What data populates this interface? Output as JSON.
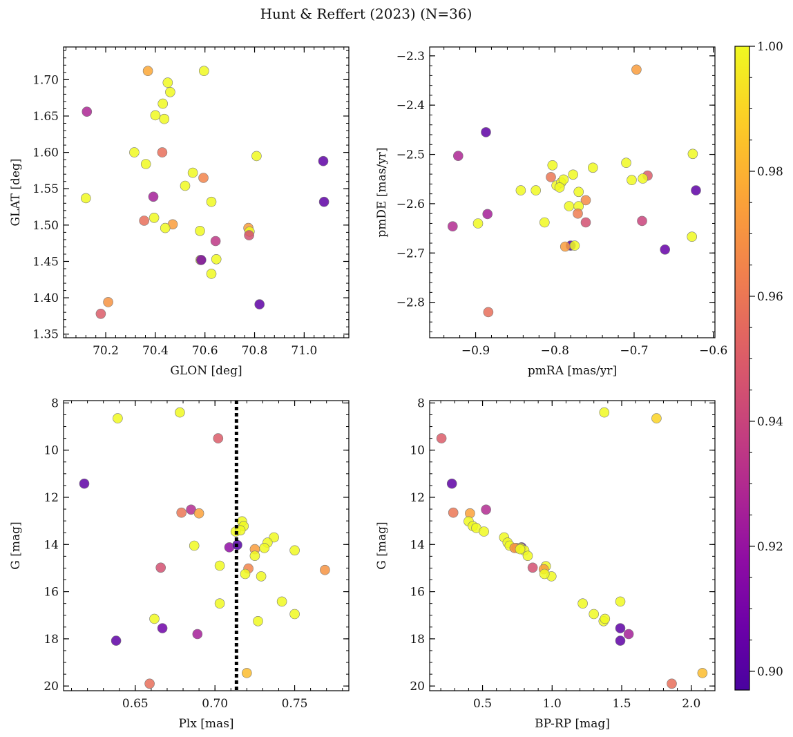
{
  "figure": {
    "title": "Hunt & Reffert (2023) (N=36)",
    "colormap": "plasma",
    "colorbar": {
      "min": 0.897,
      "max": 1.0,
      "ticks": [
        "0.90",
        "0.92",
        "0.94",
        "0.96",
        "0.98",
        "1.00"
      ],
      "tick_values": [
        0.9,
        0.92,
        0.94,
        0.96,
        0.98,
        1.0
      ]
    },
    "marker_edge_color": "#777777",
    "vline_color": "#000000"
  },
  "chart_data": [
    {
      "type": "scatter",
      "xlabel": "GLON [deg]",
      "ylabel": "GLAT [deg]",
      "xlim": [
        70.03,
        71.18
      ],
      "ylim": [
        1.345,
        1.745
      ],
      "y_inverted": false,
      "xticks": [
        70.2,
        70.4,
        70.6,
        70.8,
        71.0
      ],
      "xtick_labels": [
        "70.2",
        "70.4",
        "70.6",
        "70.8",
        "71.0"
      ],
      "yticks": [
        1.35,
        1.4,
        1.45,
        1.5,
        1.55,
        1.6,
        1.65,
        1.7
      ],
      "ytick_labels": [
        "1.35",
        "1.40",
        "1.45",
        "1.50",
        "1.55",
        "1.60",
        "1.65",
        "1.70"
      ],
      "x": [
        70.37,
        70.596,
        70.45,
        70.46,
        70.124,
        70.43,
        70.4,
        70.436,
        70.315,
        70.428,
        70.362,
        70.808,
        71.077,
        70.551,
        70.594,
        70.52,
        70.392,
        70.12,
        70.626,
        71.08,
        70.395,
        70.355,
        70.47,
        70.44,
        70.775,
        70.58,
        70.78,
        70.778,
        70.643,
        70.582,
        70.585,
        70.646,
        70.626,
        70.82,
        70.21,
        70.18
      ],
      "y": [
        1.712,
        1.712,
        1.696,
        1.683,
        1.656,
        1.667,
        1.651,
        1.646,
        1.6,
        1.6,
        1.584,
        1.595,
        1.588,
        1.572,
        1.565,
        1.554,
        1.539,
        1.537,
        1.532,
        1.532,
        1.51,
        1.506,
        1.501,
        1.496,
        1.496,
        1.492,
        1.491,
        1.486,
        1.478,
        1.452,
        1.452,
        1.453,
        1.433,
        1.391,
        1.394,
        1.378
      ],
      "c": [
        0.977,
        1.0,
        1.0,
        1.0,
        0.928,
        1.0,
        1.0,
        1.0,
        1.0,
        0.957,
        1.0,
        1.0,
        0.903,
        1.0,
        0.965,
        1.0,
        0.925,
        1.0,
        1.0,
        0.903,
        1.0,
        0.957,
        0.973,
        1.0,
        0.973,
        1.0,
        1.0,
        0.945,
        0.935,
        1.0,
        0.91,
        1.0,
        1.0,
        0.903,
        0.97,
        0.95
      ]
    },
    {
      "type": "scatter",
      "xlabel": "pmRA [mas/yr]",
      "ylabel": "pmDE [mas/yr]",
      "xlim": [
        -0.958,
        -0.598
      ],
      "ylim": [
        -2.872,
        -2.282
      ],
      "y_inverted": false,
      "xticks": [
        -0.9,
        -0.8,
        -0.7,
        -0.6
      ],
      "xtick_labels": [
        "−0.9",
        "−0.8",
        "−0.7",
        "−0.6"
      ],
      "yticks": [
        -2.8,
        -2.7,
        -2.6,
        -2.5,
        -2.4,
        -2.3
      ],
      "ytick_labels": [
        "−2.8",
        "−2.7",
        "−2.6",
        "−2.5",
        "−2.4",
        "−2.3"
      ],
      "x": [
        -0.697,
        -0.887,
        -0.922,
        -0.626,
        -0.71,
        -0.803,
        -0.752,
        -0.805,
        -0.777,
        -0.683,
        -0.703,
        -0.689,
        -0.798,
        -0.792,
        -0.789,
        -0.794,
        -0.843,
        -0.824,
        -0.77,
        -0.622,
        -0.761,
        -0.782,
        -0.77,
        -0.813,
        -0.929,
        -0.897,
        -0.885,
        -0.69,
        -0.761,
        -0.627,
        -0.771,
        -0.661,
        -0.78,
        -0.775,
        -0.787,
        -0.884
      ],
      "y": [
        -2.328,
        -2.455,
        -2.503,
        -2.499,
        -2.517,
        -2.522,
        -2.527,
        -2.546,
        -2.541,
        -2.543,
        -2.552,
        -2.549,
        -2.563,
        -2.557,
        -2.551,
        -2.567,
        -2.573,
        -2.573,
        -2.576,
        -2.573,
        -2.593,
        -2.605,
        -2.605,
        -2.638,
        -2.646,
        -2.64,
        -2.621,
        -2.635,
        -2.638,
        -2.667,
        -2.62,
        -2.693,
        -2.685,
        -2.685,
        -2.687,
        -2.82
      ],
      "c": [
        0.973,
        0.903,
        0.928,
        1.0,
        1.0,
        1.0,
        1.0,
        0.96,
        1.0,
        0.95,
        1.0,
        1.0,
        1.0,
        1.0,
        1.0,
        1.0,
        1.0,
        1.0,
        1.0,
        0.903,
        0.967,
        1.0,
        1.0,
        1.0,
        0.93,
        1.0,
        0.925,
        0.94,
        0.945,
        1.0,
        0.962,
        0.905,
        0.9,
        1.0,
        0.973,
        0.957
      ]
    },
    {
      "type": "scatter",
      "xlabel": "Plx [mas]",
      "ylabel": "G [mag]",
      "xlim": [
        0.605,
        0.784
      ],
      "ylim": [
        20.2,
        7.9
      ],
      "y_inverted": true,
      "xticks": [
        0.65,
        0.7,
        0.75
      ],
      "xtick_labels": [
        "0.65",
        "0.70",
        "0.75"
      ],
      "yticks": [
        8,
        10,
        12,
        14,
        16,
        18,
        20
      ],
      "ytick_labels": [
        "8",
        "10",
        "12",
        "14",
        "16",
        "18",
        "20"
      ],
      "vline_x": 0.7135,
      "x": [
        0.678,
        0.639,
        0.702,
        0.618,
        0.685,
        0.679,
        0.69,
        0.717,
        0.718,
        0.713,
        0.737,
        0.733,
        0.731,
        0.725,
        0.725,
        0.75,
        0.687,
        0.709,
        0.714,
        0.703,
        0.721,
        0.719,
        0.729,
        0.666,
        0.769,
        0.742,
        0.703,
        0.75,
        0.727,
        0.662,
        0.667,
        0.638,
        0.689,
        0.72,
        0.659,
        0.716
      ],
      "y": [
        8.4,
        8.65,
        9.5,
        11.42,
        12.52,
        12.65,
        12.68,
        13.02,
        13.22,
        13.45,
        13.7,
        13.92,
        14.15,
        14.2,
        14.48,
        14.25,
        14.05,
        14.12,
        14.02,
        14.9,
        15.02,
        15.25,
        15.35,
        14.98,
        15.08,
        16.42,
        16.5,
        16.95,
        17.25,
        17.15,
        17.55,
        18.08,
        17.8,
        19.45,
        19.9,
        13.4
      ],
      "c": [
        1.0,
        1.0,
        0.95,
        0.903,
        0.93,
        0.96,
        0.975,
        1.0,
        1.0,
        1.0,
        1.0,
        1.0,
        1.0,
        0.973,
        1.0,
        1.0,
        1.0,
        0.918,
        0.9,
        1.0,
        0.965,
        1.0,
        1.0,
        0.945,
        0.97,
        1.0,
        1.0,
        1.0,
        1.0,
        1.0,
        0.908,
        0.903,
        0.925,
        0.983,
        0.957,
        1.0
      ]
    },
    {
      "type": "scatter",
      "xlabel": "BP-RP [mag]",
      "ylabel": "G [mag]",
      "xlim": [
        0.12,
        2.17
      ],
      "ylim": [
        20.2,
        7.9
      ],
      "y_inverted": true,
      "xticks": [
        0.5,
        1.0,
        1.5,
        2.0
      ],
      "xtick_labels": [
        "0.5",
        "1.0",
        "1.5",
        "2.0"
      ],
      "yticks": [
        8,
        10,
        12,
        14,
        16,
        18,
        20
      ],
      "ytick_labels": [
        "8",
        "10",
        "12",
        "14",
        "16",
        "18",
        "20"
      ],
      "x": [
        1.375,
        1.75,
        0.205,
        0.28,
        0.525,
        0.29,
        0.41,
        0.4,
        0.43,
        0.455,
        0.51,
        0.655,
        0.68,
        0.695,
        0.745,
        0.78,
        0.775,
        0.8,
        0.825,
        0.955,
        0.94,
        0.86,
        0.995,
        1.22,
        1.3,
        1.49,
        1.37,
        1.38,
        1.49,
        1.55,
        1.49,
        2.08,
        1.86,
        0.945,
        0.73,
        0.77
      ],
      "y": [
        8.4,
        8.65,
        9.5,
        11.42,
        12.52,
        12.65,
        12.68,
        13.02,
        13.22,
        13.3,
        13.45,
        13.7,
        13.92,
        14.05,
        14.15,
        14.12,
        14.15,
        14.25,
        14.48,
        14.92,
        15.05,
        14.98,
        15.35,
        16.5,
        16.95,
        16.42,
        17.25,
        17.15,
        17.55,
        17.8,
        18.08,
        19.45,
        19.9,
        15.25,
        14.15,
        14.2
      ],
      "c": [
        1.0,
        0.99,
        0.95,
        0.903,
        0.93,
        0.96,
        0.975,
        1.0,
        1.0,
        1.0,
        1.0,
        1.0,
        1.0,
        1.0,
        0.973,
        0.9,
        1.0,
        1.0,
        1.0,
        1.0,
        0.973,
        0.945,
        1.0,
        1.0,
        1.0,
        1.0,
        1.0,
        1.0,
        0.903,
        0.925,
        0.903,
        0.983,
        0.957,
        1.0,
        0.97,
        1.0
      ]
    }
  ]
}
